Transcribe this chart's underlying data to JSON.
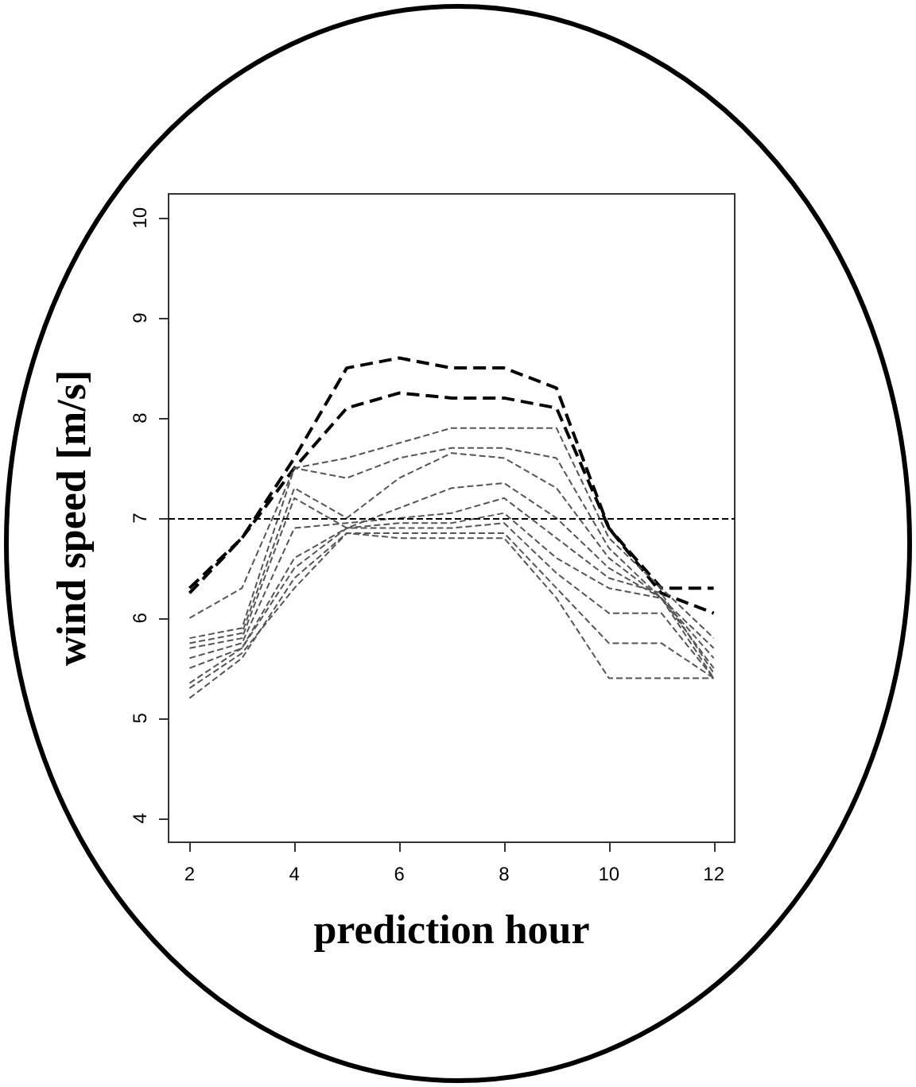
{
  "chart_data": {
    "type": "line",
    "xlabel": "prediction hour",
    "ylabel": "wind speed [m/s]",
    "x": [
      2,
      3,
      4,
      5,
      6,
      7,
      8,
      9,
      10,
      11,
      12
    ],
    "xlim": [
      1.6,
      12.4
    ],
    "xticks": [
      2,
      4,
      6,
      8,
      10,
      12
    ],
    "ylim": [
      3.76,
      10.24
    ],
    "yticks": [
      4,
      5,
      6,
      7,
      8,
      9,
      10
    ],
    "grid": false,
    "marker": "none",
    "line_style": "dashed",
    "ref_lines": [
      {
        "axis": "y",
        "value": 7,
        "color": "#000000",
        "line_style": "dashed"
      }
    ],
    "series": [
      {
        "color": "#000000",
        "values": [
          6.3,
          6.8,
          7.6,
          8.5,
          8.6,
          8.5,
          8.5,
          8.3,
          6.9,
          6.3,
          6.3
        ]
      },
      {
        "color": "#000000",
        "values": [
          6.25,
          6.8,
          7.5,
          8.1,
          8.25,
          8.2,
          8.2,
          8.1,
          6.9,
          6.25,
          6.05
        ]
      },
      {
        "color": "#555555",
        "values": [
          6.0,
          6.3,
          7.5,
          7.6,
          7.75,
          7.9,
          7.9,
          7.9,
          6.8,
          6.3,
          5.8
        ]
      },
      {
        "color": "#555555",
        "values": [
          5.8,
          5.9,
          7.5,
          7.4,
          7.6,
          7.7,
          7.7,
          7.6,
          6.7,
          6.2,
          5.7
        ]
      },
      {
        "color": "#555555",
        "values": [
          5.75,
          5.85,
          7.3,
          7.0,
          7.4,
          7.65,
          7.6,
          7.3,
          6.6,
          6.2,
          5.6
        ]
      },
      {
        "color": "#555555",
        "values": [
          5.7,
          5.8,
          7.2,
          6.9,
          7.1,
          7.3,
          7.35,
          7.0,
          6.5,
          6.2,
          5.5
        ]
      },
      {
        "color": "#555555",
        "values": [
          5.6,
          5.75,
          6.9,
          6.95,
          7.0,
          7.05,
          7.2,
          6.8,
          6.4,
          6.25,
          5.45
        ]
      },
      {
        "color": "#555555",
        "values": [
          5.5,
          5.7,
          6.6,
          6.9,
          6.95,
          6.95,
          7.05,
          6.6,
          6.3,
          6.2,
          5.4
        ]
      },
      {
        "color": "#555555",
        "values": [
          5.35,
          5.7,
          6.5,
          6.9,
          6.9,
          6.9,
          6.95,
          6.45,
          6.05,
          6.05,
          5.4
        ]
      },
      {
        "color": "#555555",
        "values": [
          5.2,
          5.6,
          6.4,
          6.85,
          6.85,
          6.85,
          6.85,
          6.3,
          5.75,
          5.75,
          5.4
        ]
      },
      {
        "color": "#555555",
        "values": [
          5.3,
          5.65,
          6.3,
          6.85,
          6.8,
          6.8,
          6.8,
          6.2,
          5.4,
          5.4,
          5.4
        ]
      }
    ]
  }
}
